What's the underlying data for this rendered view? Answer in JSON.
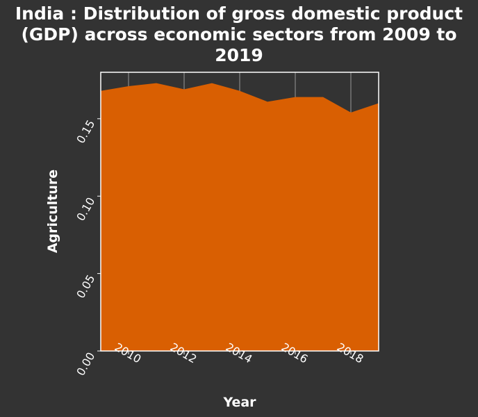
{
  "chart_data": {
    "type": "area",
    "title": "India : Distribution of gross domestic product (GDP) across economic sectors from 2009 to 2019",
    "title_lines": [
      "India : Distribution of gross domestic product",
      "(GDP) across economic sectors from 2009 to",
      "2019"
    ],
    "xlabel": "Year",
    "ylabel": "Agriculture",
    "x": [
      2009,
      2010,
      2011,
      2012,
      2013,
      2014,
      2015,
      2016,
      2017,
      2018,
      2019
    ],
    "series": [
      {
        "values": [
          0.168,
          0.171,
          0.173,
          0.169,
          0.173,
          0.168,
          0.161,
          0.164,
          0.164,
          0.154,
          0.16
        ]
      }
    ],
    "xlim": [
      2009,
      2019
    ],
    "ylim": [
      0.0,
      0.18
    ],
    "xticks": [
      2010,
      2012,
      2014,
      2016,
      2018
    ],
    "xtick_labels": [
      "2010",
      "2012",
      "2014",
      "2016",
      "2018"
    ],
    "yticks": [
      0.0,
      0.05,
      0.1,
      0.15
    ],
    "ytick_labels": [
      "0.00",
      "0.05",
      "0.10",
      "0.15"
    ],
    "grid": "vertical",
    "colors": {
      "background": "#333333",
      "area": "#d95f02",
      "grid": "#999999",
      "frame": "#ffffff",
      "text": "#ffffff"
    }
  }
}
